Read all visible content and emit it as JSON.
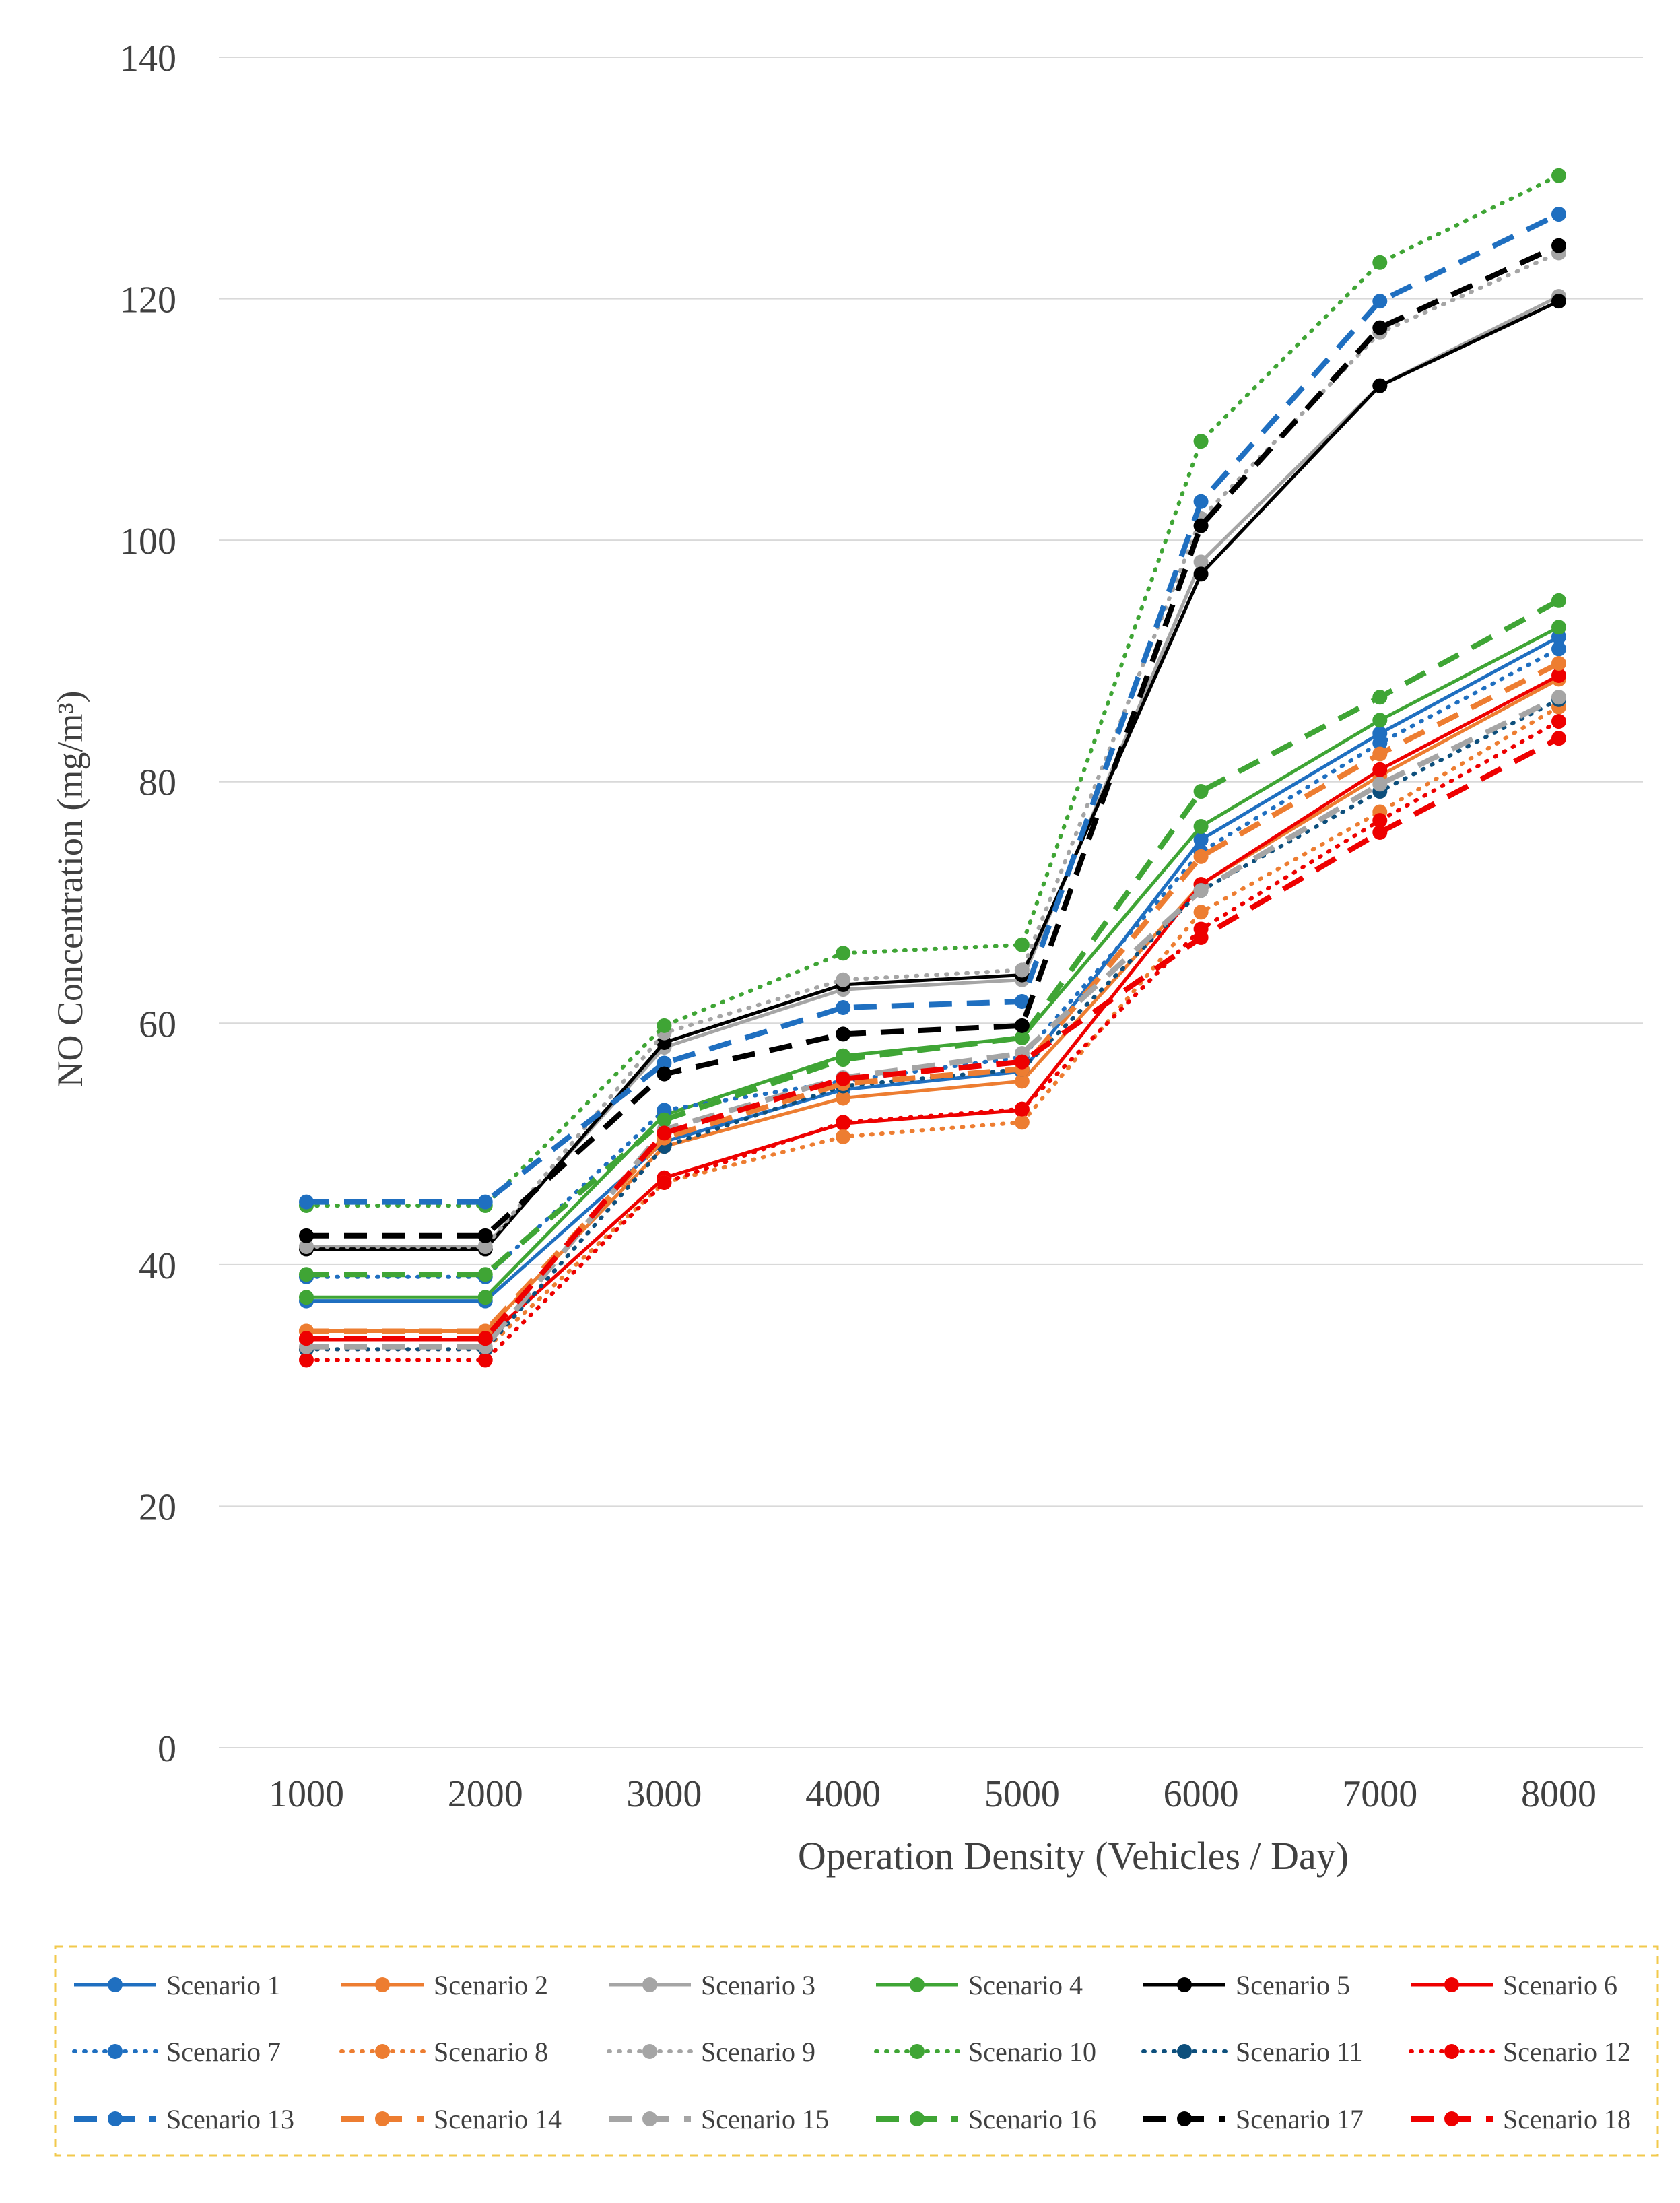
{
  "chart_data": {
    "type": "line",
    "title": "",
    "xlabel": "Operation Density (Vehicles / Day)",
    "ylabel": "NO Concentration (mg/m³)",
    "ylim": [
      0,
      140
    ],
    "yticks": [
      0,
      20,
      40,
      60,
      80,
      100,
      120,
      140
    ],
    "x": [
      1000,
      2000,
      3000,
      4000,
      5000,
      6000,
      7000,
      8000
    ],
    "x_tick_labels": [
      "1000",
      "2000",
      "3000",
      "4000",
      "5000",
      "6000",
      "7000",
      "8000"
    ],
    "grid": "horizontal",
    "legend_position": "bottom",
    "series": [
      {
        "name": "Scenario 1",
        "color": "#1f6fc0",
        "style": "solid",
        "values": [
          37.0,
          37.0,
          50.2,
          54.5,
          56.0,
          75.2,
          84.0,
          92.0
        ]
      },
      {
        "name": "Scenario 2",
        "color": "#ed7d31",
        "style": "solid",
        "values": [
          34.5,
          34.5,
          49.8,
          53.8,
          55.2,
          71.5,
          80.5,
          88.5
        ]
      },
      {
        "name": "Scenario 3",
        "color": "#a5a5a5",
        "style": "solid",
        "values": [
          41.5,
          41.5,
          58.0,
          62.8,
          63.6,
          98.2,
          112.8,
          120.2
        ]
      },
      {
        "name": "Scenario 4",
        "color": "#3fa535",
        "style": "solid",
        "values": [
          37.3,
          37.3,
          52.4,
          57.3,
          58.8,
          76.3,
          85.1,
          92.8
        ]
      },
      {
        "name": "Scenario 5",
        "color": "#000000",
        "style": "solid",
        "values": [
          41.3,
          41.3,
          58.4,
          63.2,
          64.0,
          97.2,
          112.8,
          119.8
        ]
      },
      {
        "name": "Scenario 6",
        "color": "#ee0000",
        "style": "solid",
        "values": [
          33.8,
          33.8,
          47.2,
          51.7,
          52.8,
          71.5,
          81.0,
          88.8
        ]
      },
      {
        "name": "Scenario 7",
        "color": "#1f6fc0",
        "style": "dotted",
        "values": [
          39.0,
          39.0,
          52.8,
          55.2,
          57.2,
          74.2,
          83.2,
          91.0
        ]
      },
      {
        "name": "Scenario 8",
        "color": "#ed7d31",
        "style": "dotted",
        "values": [
          33.0,
          33.0,
          46.8,
          50.6,
          51.8,
          69.2,
          77.5,
          86.2
        ]
      },
      {
        "name": "Scenario 9",
        "color": "#a5a5a5",
        "style": "dotted",
        "values": [
          41.5,
          41.5,
          59.2,
          63.6,
          64.4,
          101.8,
          117.2,
          123.8
        ]
      },
      {
        "name": "Scenario 10",
        "color": "#3fa535",
        "style": "dotted",
        "values": [
          44.9,
          44.9,
          59.8,
          65.8,
          66.5,
          108.2,
          123.0,
          130.2
        ]
      },
      {
        "name": "Scenario 11",
        "color": "#0d4f7c",
        "style": "dotted",
        "values": [
          33.0,
          33.0,
          49.8,
          54.8,
          56.2,
          71.0,
          79.2,
          86.8
        ]
      },
      {
        "name": "Scenario 12",
        "color": "#ee0000",
        "style": "dotted",
        "values": [
          32.1,
          32.1,
          46.8,
          51.8,
          52.9,
          67.8,
          76.8,
          85.0
        ]
      },
      {
        "name": "Scenario 13",
        "color": "#1f6fc0",
        "style": "dashed",
        "values": [
          45.2,
          45.2,
          56.7,
          61.3,
          61.8,
          103.2,
          119.8,
          127.0
        ]
      },
      {
        "name": "Scenario 14",
        "color": "#ed7d31",
        "style": "dashed",
        "values": [
          34.5,
          34.5,
          50.5,
          55.0,
          56.2,
          73.8,
          82.3,
          89.8
        ]
      },
      {
        "name": "Scenario 15",
        "color": "#a5a5a5",
        "style": "dashed",
        "values": [
          33.2,
          33.2,
          51.2,
          55.5,
          57.5,
          71.0,
          79.8,
          87.0
        ]
      },
      {
        "name": "Scenario 16",
        "color": "#3fa535",
        "style": "dashed",
        "values": [
          39.2,
          39.2,
          52.0,
          57.0,
          58.8,
          79.2,
          87.0,
          95.0
        ]
      },
      {
        "name": "Scenario 17",
        "color": "#000000",
        "style": "dashed",
        "values": [
          42.4,
          42.4,
          55.8,
          59.1,
          59.8,
          101.2,
          117.6,
          124.4
        ]
      },
      {
        "name": "Scenario 18",
        "color": "#ee0000",
        "style": "dashed",
        "values": [
          33.9,
          33.9,
          50.9,
          55.4,
          56.8,
          67.1,
          75.8,
          83.6
        ]
      }
    ]
  }
}
